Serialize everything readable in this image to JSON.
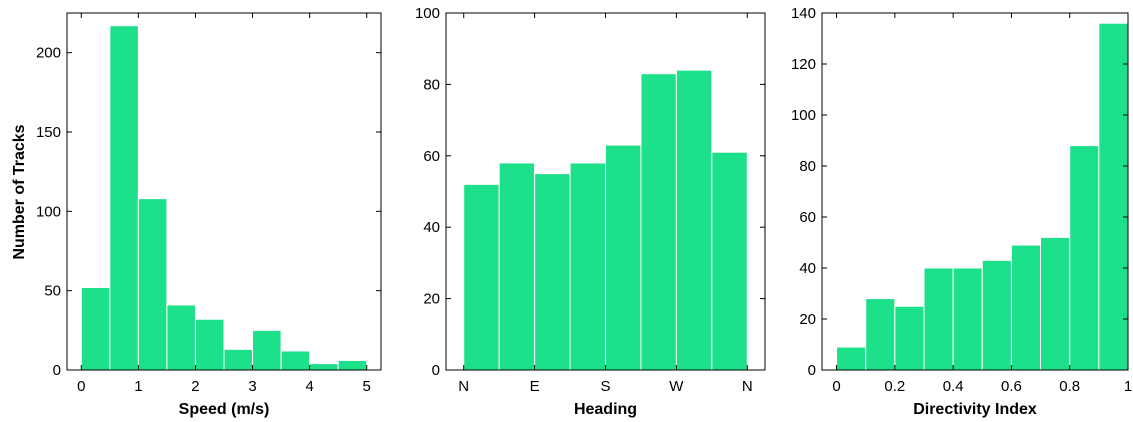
{
  "figure": {
    "ylabel": "Number of Tracks",
    "bar_color": "#1de08a"
  },
  "chart_data": [
    {
      "type": "bar",
      "title": "",
      "xlabel": "Speed (m/s)",
      "ylabel": "Number of Tracks",
      "xlim": [
        -0.25,
        5.25
      ],
      "ylim": [
        0,
        225
      ],
      "xticks": [
        0,
        1,
        2,
        3,
        4,
        5
      ],
      "xtick_labels": [
        "0",
        "1",
        "2",
        "3",
        "4",
        "5"
      ],
      "yticks": [
        0,
        50,
        100,
        150,
        200
      ],
      "ytick_labels": [
        "0",
        "50",
        "100",
        "150",
        "200"
      ],
      "bin_edges": [
        0,
        0.5,
        1,
        1.5,
        2,
        2.5,
        3,
        3.5,
        4,
        4.5,
        5
      ],
      "values": [
        52,
        217,
        108,
        41,
        32,
        13,
        25,
        12,
        4,
        6
      ],
      "grid": false
    },
    {
      "type": "bar",
      "title": "",
      "xlabel": "Heading",
      "ylabel": "",
      "xlim": [
        -0.5,
        8.5
      ],
      "ylim": [
        0,
        100
      ],
      "xticks": [
        0,
        2,
        4,
        6,
        8
      ],
      "xtick_labels": [
        "N",
        "E",
        "S",
        "W",
        "N"
      ],
      "yticks": [
        0,
        20,
        40,
        60,
        80,
        100
      ],
      "ytick_labels": [
        "0",
        "20",
        "40",
        "60",
        "80",
        "100"
      ],
      "bin_edges": [
        0,
        1,
        2,
        3,
        4,
        5,
        6,
        7,
        8
      ],
      "values": [
        52,
        58,
        55,
        58,
        63,
        83,
        84,
        61
      ],
      "grid": false
    },
    {
      "type": "bar",
      "title": "",
      "xlabel": "Directivity Index",
      "ylabel": "",
      "xlim": [
        -0.05,
        1.0
      ],
      "ylim": [
        0,
        140
      ],
      "xticks": [
        0,
        0.2,
        0.4,
        0.6,
        0.8,
        1
      ],
      "xtick_labels": [
        "0",
        "0.2",
        "0.4",
        "0.6",
        "0.8",
        "1"
      ],
      "yticks": [
        0,
        20,
        40,
        60,
        80,
        100,
        120,
        140
      ],
      "ytick_labels": [
        "0",
        "20",
        "40",
        "60",
        "80",
        "100",
        "120",
        "140"
      ],
      "bin_edges": [
        0,
        0.1,
        0.2,
        0.3,
        0.4,
        0.5,
        0.6,
        0.7,
        0.8,
        0.9,
        1.0
      ],
      "values": [
        9,
        28,
        25,
        40,
        40,
        43,
        49,
        52,
        88,
        136
      ],
      "grid": false
    }
  ]
}
